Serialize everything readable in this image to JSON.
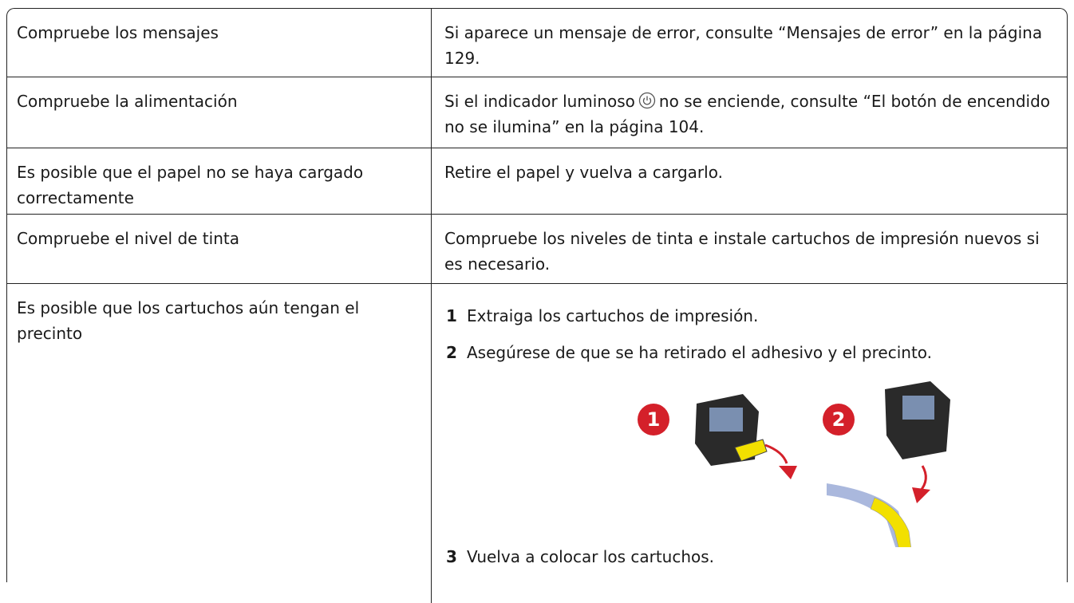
{
  "table": {
    "rows": [
      [
        "Compruebe los mensajes",
        "Si aparece un mensaje de error, consulte “Mensajes de error” en la página 129."
      ],
      [
        "Compruebe la alimentación",
        {
          "before": "Si el indicador luminoso",
          "after": "no se enciende, consulte “El botón de encendido no se ilumina” en la página 104."
        }
      ],
      [
        "Es posible que el papel no se haya cargado correctamente",
        "Retire el papel y vuelva a cargarlo."
      ],
      [
        "Compruebe el nivel de tinta",
        "Compruebe los niveles de tinta e instale cartuchos de impresión nuevos si es necesario."
      ],
      [
        "Es posible que los cartuchos aún tengan el precinto",
        {
          "steps": [
            {
              "number": "1",
              "text": "Extraiga los cartuchos de impresión."
            },
            {
              "number": "2",
              "text": "Asegúrese de que se ha retirado el adhesivo y el precinto."
            },
            {
              "number": "3",
              "text": "Vuelva a colocar los cartuchos."
            }
          ],
          "figure": {
            "callouts": [
              "1",
              "2"
            ]
          }
        }
      ]
    ]
  }
}
